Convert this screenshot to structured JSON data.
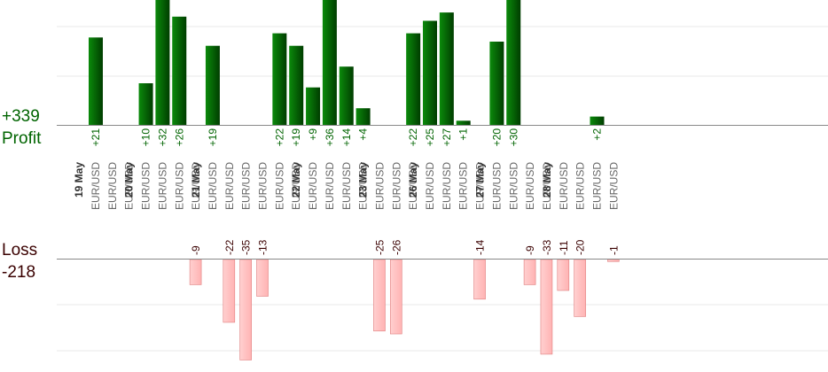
{
  "summary": {
    "profit_total": "+339",
    "profit_label": "Profit",
    "loss_label": "Loss",
    "loss_total": "-218"
  },
  "colors": {
    "profit_bar_dark": "#003d00",
    "profit_bar_light": "#0b8a0b",
    "profit_text": "#006400",
    "loss_bar": "#ffb3b3",
    "loss_bar_edge": "#e07f7f",
    "loss_text": "#3a0000",
    "label_gray": "#666666",
    "date_text": "#333333",
    "axis": "#888888",
    "grid": "#e8e8e8"
  },
  "chart_data": {
    "type": "bar",
    "title": "",
    "categories": [
      "19 May",
      "20 May",
      "21 May",
      "22 May",
      "23 May",
      "26 May",
      "27 May",
      "28 May"
    ],
    "symbol": "EUR/USD",
    "trades": [
      {
        "day": "19 May",
        "symbol": "EUR/USD",
        "value": 21
      },
      {
        "day": "19 May",
        "symbol": "EUR/USD",
        "value": 0
      },
      {
        "day": "19 May",
        "symbol": "EUR/USD",
        "value": 0
      },
      {
        "day": "20 May",
        "symbol": "EUR/USD",
        "value": 10
      },
      {
        "day": "20 May",
        "symbol": "EUR/USD",
        "value": 32
      },
      {
        "day": "20 May",
        "symbol": "EUR/USD",
        "value": 26
      },
      {
        "day": "20 May",
        "symbol": "EUR/USD",
        "value": -9
      },
      {
        "day": "21 May",
        "symbol": "EUR/USD",
        "value": 19
      },
      {
        "day": "21 May",
        "symbol": "EUR/USD",
        "value": -22
      },
      {
        "day": "21 May",
        "symbol": "EUR/USD",
        "value": -35
      },
      {
        "day": "21 May",
        "symbol": "EUR/USD",
        "value": -13
      },
      {
        "day": "21 May",
        "symbol": "EUR/USD",
        "value": 22
      },
      {
        "day": "21 May",
        "symbol": "EUR/USD",
        "value": 19
      },
      {
        "day": "22 May",
        "symbol": "EUR/USD",
        "value": 9
      },
      {
        "day": "22 May",
        "symbol": "EUR/USD",
        "value": 36
      },
      {
        "day": "22 May",
        "symbol": "EUR/USD",
        "value": 14
      },
      {
        "day": "22 May",
        "symbol": "EUR/USD",
        "value": 4
      },
      {
        "day": "23 May",
        "symbol": "EUR/USD",
        "value": -25
      },
      {
        "day": "23 May",
        "symbol": "EUR/USD",
        "value": -26
      },
      {
        "day": "23 May",
        "symbol": "EUR/USD",
        "value": 22
      },
      {
        "day": "26 May",
        "symbol": "EUR/USD",
        "value": 25
      },
      {
        "day": "26 May",
        "symbol": "EUR/USD",
        "value": 27
      },
      {
        "day": "26 May",
        "symbol": "EUR/USD",
        "value": 1
      },
      {
        "day": "26 May",
        "symbol": "EUR/USD",
        "value": -14
      },
      {
        "day": "27 May",
        "symbol": "EUR/USD",
        "value": 20
      },
      {
        "day": "27 May",
        "symbol": "EUR/USD",
        "value": 30
      },
      {
        "day": "27 May",
        "symbol": "EUR/USD",
        "value": -9
      },
      {
        "day": "27 May",
        "symbol": "EUR/USD",
        "value": -33
      },
      {
        "day": "28 May",
        "symbol": "EUR/USD",
        "value": -11
      },
      {
        "day": "28 May",
        "symbol": "EUR/USD",
        "value": -20
      },
      {
        "day": "28 May",
        "symbol": "EUR/USD",
        "value": 2
      },
      {
        "day": "28 May",
        "symbol": "EUR/USD",
        "value": -1
      }
    ],
    "profit_axis": {
      "min": 0,
      "max": 36
    },
    "loss_axis": {
      "min": -36,
      "max": 0
    },
    "grid": true,
    "legend": "none"
  }
}
